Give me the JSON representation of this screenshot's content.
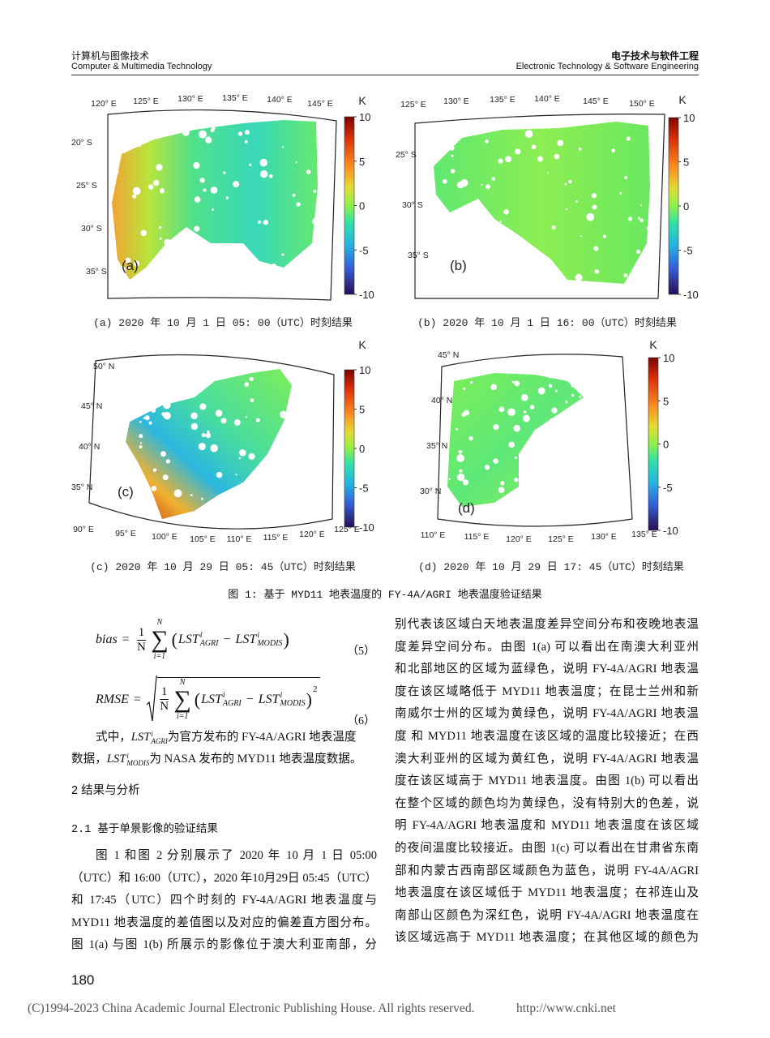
{
  "header": {
    "left_cn": "计算机与图像技术",
    "left_en": "Computer & Multimedia Technology",
    "right_cn": "电子技术与软件工程",
    "right_en": "Electronic Technology & Software Engineering"
  },
  "figure": {
    "panels": [
      {
        "label": "(a)",
        "unit": "K",
        "colorbar_ticks": [
          10,
          5,
          0,
          -5,
          -10
        ],
        "lon_labels": [
          "120° E",
          "125° E",
          "130° E",
          "135° E",
          "140° E",
          "145° E"
        ],
        "lat_labels": [
          "20° S",
          "25° S",
          "30° S",
          "35° S"
        ],
        "caption": "(a) 2020 年 10 月 1 日 05: 00（UTC）时刻结果"
      },
      {
        "label": "(b)",
        "unit": "K",
        "colorbar_ticks": [
          10,
          5,
          0,
          -5,
          -10
        ],
        "lon_labels": [
          "125° E",
          "130° E",
          "135° E",
          "140° E",
          "145° E",
          "150° E"
        ],
        "lat_labels": [
          "25° S",
          "30° S",
          "35° S"
        ],
        "caption": "(b) 2020 年 10 月 1 日 16: 00（UTC）时刻结果"
      },
      {
        "label": "(c)",
        "unit": "K",
        "colorbar_ticks": [
          10,
          5,
          0,
          -5,
          -10
        ],
        "lon_labels": [
          "90° E",
          "95° E",
          "100° E",
          "105° E",
          "110° E",
          "115° E",
          "120° E",
          "125° E"
        ],
        "lat_labels": [
          "50° N",
          "45° N",
          "40° N",
          "35° N"
        ],
        "caption": "(c) 2020 年 10 月 29 日 05: 45（UTC）时刻结果"
      },
      {
        "label": "(d)",
        "unit": "K",
        "colorbar_ticks": [
          10,
          5,
          0,
          -5,
          -10
        ],
        "lon_labels": [
          "110° E",
          "115° E",
          "120° E",
          "125° E",
          "130° E",
          "135° E"
        ],
        "lat_labels": [
          "45° N",
          "40° N",
          "35° N",
          "30° N"
        ],
        "caption": "(d) 2020 年 10 月 29 日 17: 45（UTC）时刻结果"
      }
    ],
    "caption": "图 1: 基于 MYD11 地表温度的 FY-4A/AGRI 地表温度验证结果"
  },
  "formulas": [
    {
      "lhs": "bias",
      "eq": "=",
      "frac_num": "1",
      "frac_den": "N",
      "sum": "∑",
      "sum_top": "N",
      "sum_bottom": "i=1",
      "lparen": "(",
      "t1": "LST",
      "t1_sup": "i",
      "t1_sub": "AGRI",
      "minus": "−",
      "t2": "LST",
      "t2_sup": "i",
      "t2_sub": "MODIS",
      "rparen": ")",
      "number": "（5）"
    },
    {
      "lhs": "RMSE",
      "eq": "=",
      "frac_num": "1",
      "frac_den": "N",
      "sum": "∑",
      "sum_top": "N",
      "sum_bottom": "i=1",
      "lparen": "(",
      "t1": "LST",
      "t1_sup": "i",
      "t1_sub": "AGRI",
      "minus": "−",
      "t2": "LST",
      "t2_sup": "i",
      "t2_sub": "MODIS",
      "rparen": ")",
      "power": "2",
      "number": "（6）"
    }
  ],
  "definition": {
    "intro": "式中，",
    "t1": "LST",
    "t1_sup": "i",
    "t1_sub": "AGRI",
    "text1": "为官方发布的 FY-4A/AGRI 地表温度",
    "lead2": "数据，",
    "t2": "LST",
    "t2_sup": "i",
    "t2_sub": "MODIS",
    "text2": "为 NASA 发布的 MYD11 地表温度数据。"
  },
  "section_heading": "2 结果与分析",
  "subsection_heading": "2.1 基于单景影像的验证结果",
  "paragraph_left": [
    "图 1 和图 2 分别展示了 2020 年 10 月 1 日 05:00",
    "（UTC）和 16:00（UTC），2020 年10月29日 05:45（UTC）",
    "和 17:45（UTC）四个时刻的 FY-4A/AGRI 地表温度与",
    "MYD11 地表温度的差值图以及对应的偏差直方图分布。",
    "图 1(a) 与图 1(b) 所展示的影像位于澳大利亚南部，分"
  ],
  "paragraph_right": [
    "别代表该区域白天地表温度差异空间分布和夜晚地表温",
    "度差异空间分布。由图 1(a) 可以看出在南澳大利亚州",
    "和北部地区的区域为蓝绿色，说明 FY-4A/AGRI 地表温",
    "度在该区域略低于 MYD11 地表温度；在昆士兰州和新",
    "南威尔士州的区域为黄绿色，说明 FY-4A/AGRI 地表温",
    "度 和 MYD11 地表温度在该区域的温度比较接近；在西",
    "澳大利亚州的区域为黄红色，说明 FY-4A/AGRI 地表温",
    "度在该区域高于 MYD11 地表温度。由图 1(b) 可以看出",
    "在整个区域的颜色均为黄绿色，没有特别大的色差，说",
    "明 FY-4A/AGRI 地表温度和 MYD11 地表温度在该区域",
    "的夜间温度比较接近。由图 1(c) 可以看出在甘肃省东南",
    "部和内蒙古西南部区域颜色为蓝色，说明 FY-4A/AGRI",
    "地表温度在该区域低于 MYD11 地表温度；在祁连山及",
    "南部山区颜色为深红色，说明 FY-4A/AGRI 地表温度在",
    "该区域远高于 MYD11 地表温度；在其他区域的颜色为"
  ],
  "page_number": 180,
  "footer": {
    "copyright": "(C)1994-2023 China Academic Journal Electronic Publishing House. All rights reserved.",
    "url": "http://www.cnki.net"
  }
}
